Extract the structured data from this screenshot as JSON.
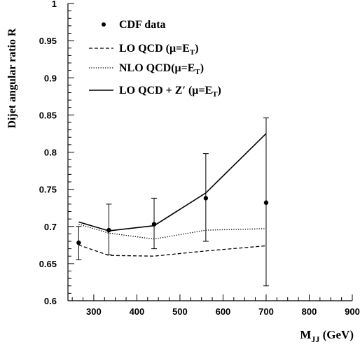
{
  "chart_data": {
    "type": "line",
    "title": "",
    "xlabel_main": "M",
    "xlabel_sub": "JJ",
    "xlabel_unit": " (GeV)",
    "ylabel": "Dijet angular ratio R",
    "xlim": [
      240,
      900
    ],
    "ylim": [
      0.6,
      1.0
    ],
    "x_ticks": [
      300,
      400,
      500,
      600,
      700,
      800,
      900
    ],
    "y_ticks": [
      0.6,
      0.65,
      0.7,
      0.75,
      0.8,
      0.85,
      0.9,
      0.95,
      1
    ],
    "y_tick_labels": [
      "0.6",
      "0.65",
      "0.7",
      "0.75",
      "0.8",
      "0.85",
      "0.9",
      "0.95",
      "1"
    ],
    "legend_position": "top-left",
    "series": [
      {
        "name": "CDF data",
        "kind": "points-with-errors",
        "x": [
          265,
          335,
          440,
          560,
          700
        ],
        "y": [
          0.678,
          0.695,
          0.703,
          0.738,
          0.732
        ],
        "err_low": [
          0.655,
          0.662,
          0.67,
          0.68,
          0.62
        ],
        "err_high": [
          0.7,
          0.73,
          0.738,
          0.798,
          0.846
        ]
      },
      {
        "name": "LO QCD (μ=E_T)",
        "kind": "dashed",
        "x": [
          265,
          335,
          440,
          560,
          700
        ],
        "y": [
          0.675,
          0.661,
          0.66,
          0.667,
          0.674
        ]
      },
      {
        "name": "NLO QCD(μ=E_T)",
        "kind": "dotted",
        "x": [
          265,
          335,
          440,
          560,
          700
        ],
        "y": [
          0.703,
          0.691,
          0.683,
          0.695,
          0.697
        ]
      },
      {
        "name": "LO QCD + Z′ (μ=E_T)",
        "kind": "solid",
        "x": [
          265,
          335,
          440,
          560,
          700
        ],
        "y": [
          0.706,
          0.694,
          0.701,
          0.745,
          0.825
        ]
      }
    ],
    "legend": [
      {
        "marker": "dot",
        "main": "CDF data",
        "sub": "",
        "tail": ""
      },
      {
        "marker": "dashed",
        "main": "LO QCD (μ=E",
        "sub": "T",
        "tail": ")"
      },
      {
        "marker": "dotted",
        "main": "NLO QCD(μ=E",
        "sub": "T",
        "tail": ")"
      },
      {
        "marker": "solid",
        "main": "LO QCD + Z′ (μ=E",
        "sub": "T",
        "tail": ")"
      }
    ]
  }
}
